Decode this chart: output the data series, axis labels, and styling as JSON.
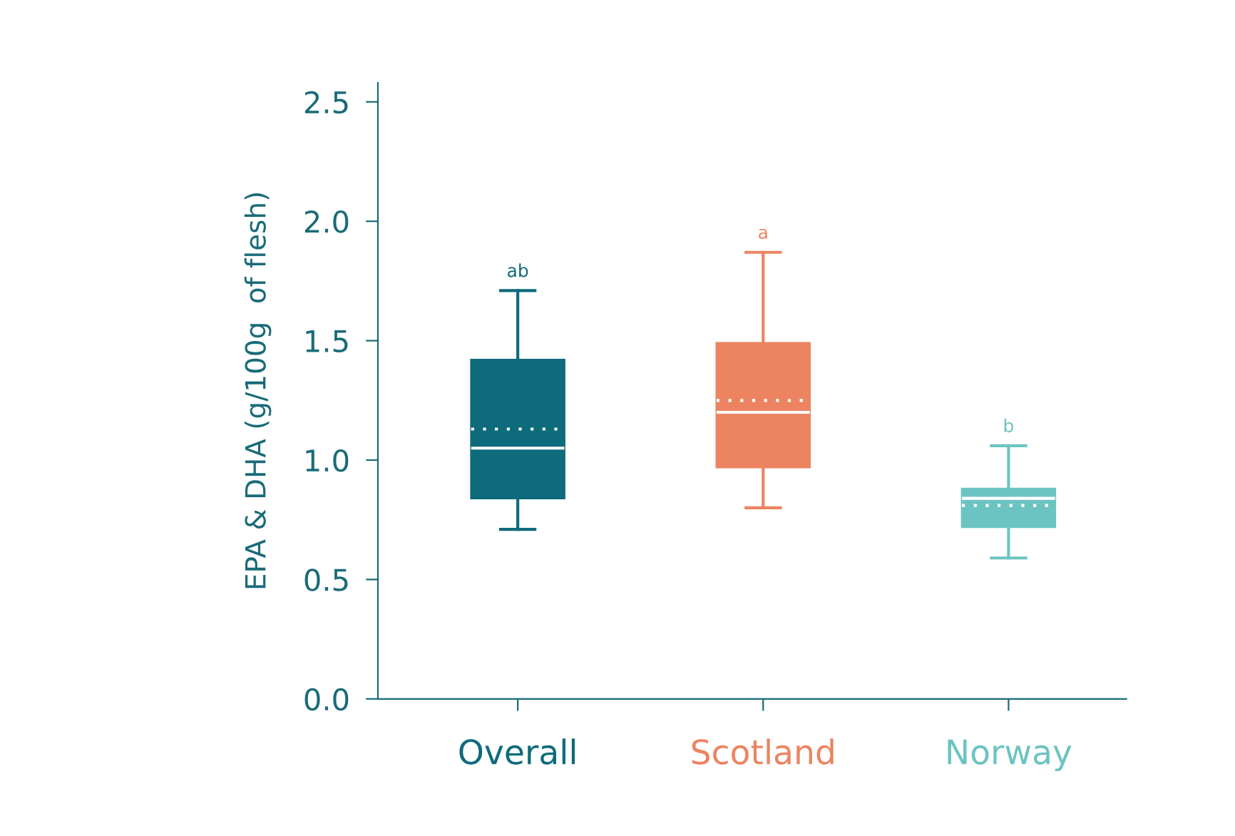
{
  "chart_data": {
    "type": "box",
    "ylabel": "EPA & DHA (g/100g  of flesh)",
    "categories": [
      "Overall",
      "Scotland",
      "Norway"
    ],
    "colors": [
      "#0e6b7c",
      "#ec8462",
      "#6cc4c2"
    ],
    "boxes": [
      {
        "low": 0.71,
        "q1": 0.84,
        "median": 1.05,
        "q3": 1.42,
        "high": 1.71,
        "mean": 1.13
      },
      {
        "low": 0.8,
        "q1": 0.97,
        "median": 1.2,
        "q3": 1.49,
        "high": 1.87,
        "mean": 1.25
      },
      {
        "low": 0.59,
        "q1": 0.72,
        "median": 0.84,
        "q3": 0.88,
        "high": 1.06,
        "mean": 0.81
      }
    ],
    "annotations": [
      {
        "text": "ab",
        "x": "Overall",
        "y": 1.71
      },
      {
        "text": "a",
        "x": "Scotland",
        "y": 1.87
      },
      {
        "text": "b",
        "x": "Norway",
        "y": 1.06
      }
    ],
    "ylim": [
      0,
      2.58
    ],
    "yticks": [
      {
        "value": 0,
        "label": "0.0"
      },
      {
        "value": 0.5,
        "label": "0.5"
      },
      {
        "value": 1,
        "label": "1.0"
      },
      {
        "value": 1.5,
        "label": "1.5"
      },
      {
        "value": 2,
        "label": "2.0"
      },
      {
        "value": 2.5,
        "label": "2.5"
      }
    ],
    "grid": false
  }
}
